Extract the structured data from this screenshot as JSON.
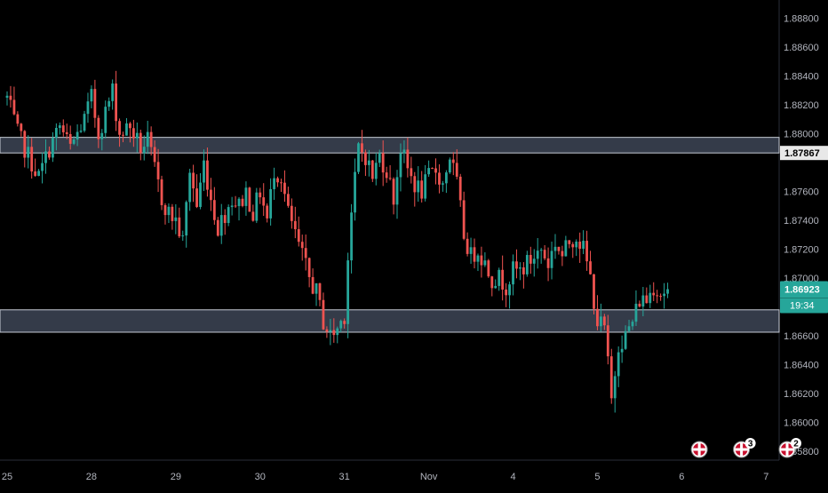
{
  "colors": {
    "background": "#000000",
    "grid": "#1c1f26",
    "axis_text": "#b2b5be",
    "up": "#26a69a",
    "down": "#ef5350",
    "zone_fill": "#3d4556",
    "zone_border": "#c7ccd6",
    "price_tag": "#26a69a",
    "level_tag": "#e8e8e8"
  },
  "chart_data": {
    "type": "candlestick",
    "title": "",
    "xlabel": "",
    "ylabel": "",
    "ylim": [
      1.8575,
      1.8895
    ],
    "y_ticks": [
      "1.88800",
      "1.88600",
      "1.88400",
      "1.88200",
      "1.88000",
      "1.87600",
      "1.87400",
      "1.87200",
      "1.87000",
      "1.86600",
      "1.86400",
      "1.86200",
      "1.86000",
      "1.85800"
    ],
    "x_ticks": [
      {
        "label": "25",
        "index": 0
      },
      {
        "label": "28",
        "index": 24
      },
      {
        "label": "29",
        "index": 48
      },
      {
        "label": "30",
        "index": 72
      },
      {
        "label": "31",
        "index": 96
      },
      {
        "label": "Nov",
        "index": 120
      },
      {
        "label": "4",
        "index": 144
      },
      {
        "label": "5",
        "index": 168
      },
      {
        "label": "6",
        "index": 192
      },
      {
        "label": "7",
        "index": 216
      }
    ],
    "zones": [
      {
        "low": 1.87867,
        "high": 1.87975
      },
      {
        "low": 1.86625,
        "high": 1.8678
      }
    ],
    "level_label": "1.87867",
    "last_price": "1.86923",
    "countdown": "19:34",
    "anchors": [
      [
        0,
        1.8825
      ],
      [
        3,
        1.88
      ],
      [
        6,
        1.8785
      ],
      [
        9,
        1.877
      ],
      [
        12,
        1.879
      ],
      [
        15,
        1.8805
      ],
      [
        18,
        1.879
      ],
      [
        20,
        1.88
      ],
      [
        22,
        1.881
      ],
      [
        24,
        1.8825
      ],
      [
        26,
        1.88
      ],
      [
        28,
        1.8815
      ],
      [
        30,
        1.883
      ],
      [
        32,
        1.88
      ],
      [
        35,
        1.8805
      ],
      [
        38,
        1.879
      ],
      [
        40,
        1.8795
      ],
      [
        42,
        1.8775
      ],
      [
        44,
        1.8755
      ],
      [
        46,
        1.8745
      ],
      [
        48,
        1.874
      ],
      [
        50,
        1.8725
      ],
      [
        52,
        1.8775
      ],
      [
        54,
        1.875
      ],
      [
        56,
        1.878
      ],
      [
        58,
        1.8755
      ],
      [
        60,
        1.8735
      ],
      [
        62,
        1.8745
      ],
      [
        64,
        1.8755
      ],
      [
        66,
        1.875
      ],
      [
        68,
        1.876
      ],
      [
        70,
        1.8745
      ],
      [
        72,
        1.876
      ],
      [
        74,
        1.874
      ],
      [
        76,
        1.8775
      ],
      [
        78,
        1.877
      ],
      [
        80,
        1.8745
      ],
      [
        82,
        1.873
      ],
      [
        84,
        1.8715
      ],
      [
        86,
        1.87
      ],
      [
        88,
        1.869
      ],
      [
        90,
        1.867
      ],
      [
        92,
        1.866
      ],
      [
        94,
        1.8665
      ],
      [
        96,
        1.8675
      ],
      [
        97,
        1.8715
      ],
      [
        98,
        1.8745
      ],
      [
        100,
        1.879
      ],
      [
        102,
        1.8785
      ],
      [
        104,
        1.877
      ],
      [
        106,
        1.8785
      ],
      [
        108,
        1.8775
      ],
      [
        110,
        1.8755
      ],
      [
        112,
        1.879
      ],
      [
        114,
        1.8775
      ],
      [
        116,
        1.8765
      ],
      [
        118,
        1.876
      ],
      [
        120,
        1.877
      ],
      [
        122,
        1.8775
      ],
      [
        124,
        1.8765
      ],
      [
        126,
        1.8785
      ],
      [
        128,
        1.8765
      ],
      [
        130,
        1.873
      ],
      [
        132,
        1.8715
      ],
      [
        134,
        1.872
      ],
      [
        136,
        1.871
      ],
      [
        138,
        1.87
      ],
      [
        140,
        1.87
      ],
      [
        142,
        1.8695
      ],
      [
        144,
        1.8705
      ],
      [
        146,
        1.8705
      ],
      [
        148,
        1.871
      ],
      [
        150,
        1.8715
      ],
      [
        152,
        1.872
      ],
      [
        154,
        1.871
      ],
      [
        156,
        1.8725
      ],
      [
        158,
        1.8715
      ],
      [
        160,
        1.8725
      ],
      [
        162,
        1.873
      ],
      [
        164,
        1.872
      ],
      [
        166,
        1.87
      ],
      [
        168,
        1.867
      ],
      [
        170,
        1.8665
      ],
      [
        171,
        1.864
      ],
      [
        172,
        1.8615
      ],
      [
        174,
        1.8655
      ],
      [
        176,
        1.866
      ],
      [
        178,
        1.867
      ],
      [
        180,
        1.8685
      ],
      [
        182,
        1.8685
      ],
      [
        184,
        1.8695
      ],
      [
        186,
        1.869
      ],
      [
        188,
        1.8692
      ]
    ],
    "markers": [
      {
        "index": 197,
        "badge": ""
      },
      {
        "index": 209,
        "badge": "3"
      },
      {
        "index": 222,
        "badge": "2"
      }
    ]
  }
}
